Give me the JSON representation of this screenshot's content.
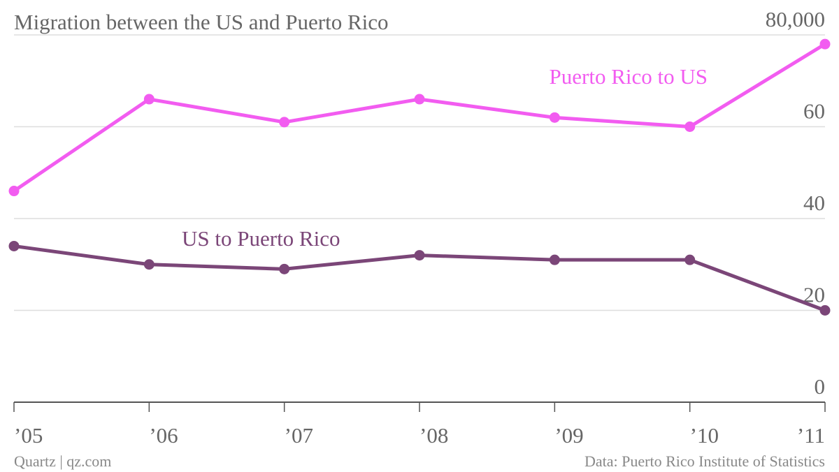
{
  "chart_data": {
    "type": "line",
    "title": "Migration between the US and Puerto Rico",
    "categories": [
      "’05",
      "’06",
      "’07",
      "’08",
      "’09",
      "’10",
      "’11"
    ],
    "series": [
      {
        "name": "Puerto Rico to US",
        "color": "#f25cf0",
        "values": [
          46000,
          66000,
          61000,
          66000,
          62000,
          60000,
          78000
        ]
      },
      {
        "name": "US to Puerto Rico",
        "color": "#7b4678",
        "values": [
          34000,
          30000,
          29000,
          32000,
          31000,
          31000,
          20000
        ]
      }
    ],
    "ylim": [
      0,
      80000
    ],
    "yticks": [
      0,
      {
        "value": 20000,
        "label": "20"
      },
      {
        "value": 40000,
        "label": "40"
      },
      {
        "value": 60000,
        "label": "60"
      },
      {
        "value": 80000,
        "label": "80,000"
      }
    ],
    "grid": true,
    "source": "Data: Puerto Rico Institute of Statistics",
    "credit": "Quartz | qz.com"
  }
}
